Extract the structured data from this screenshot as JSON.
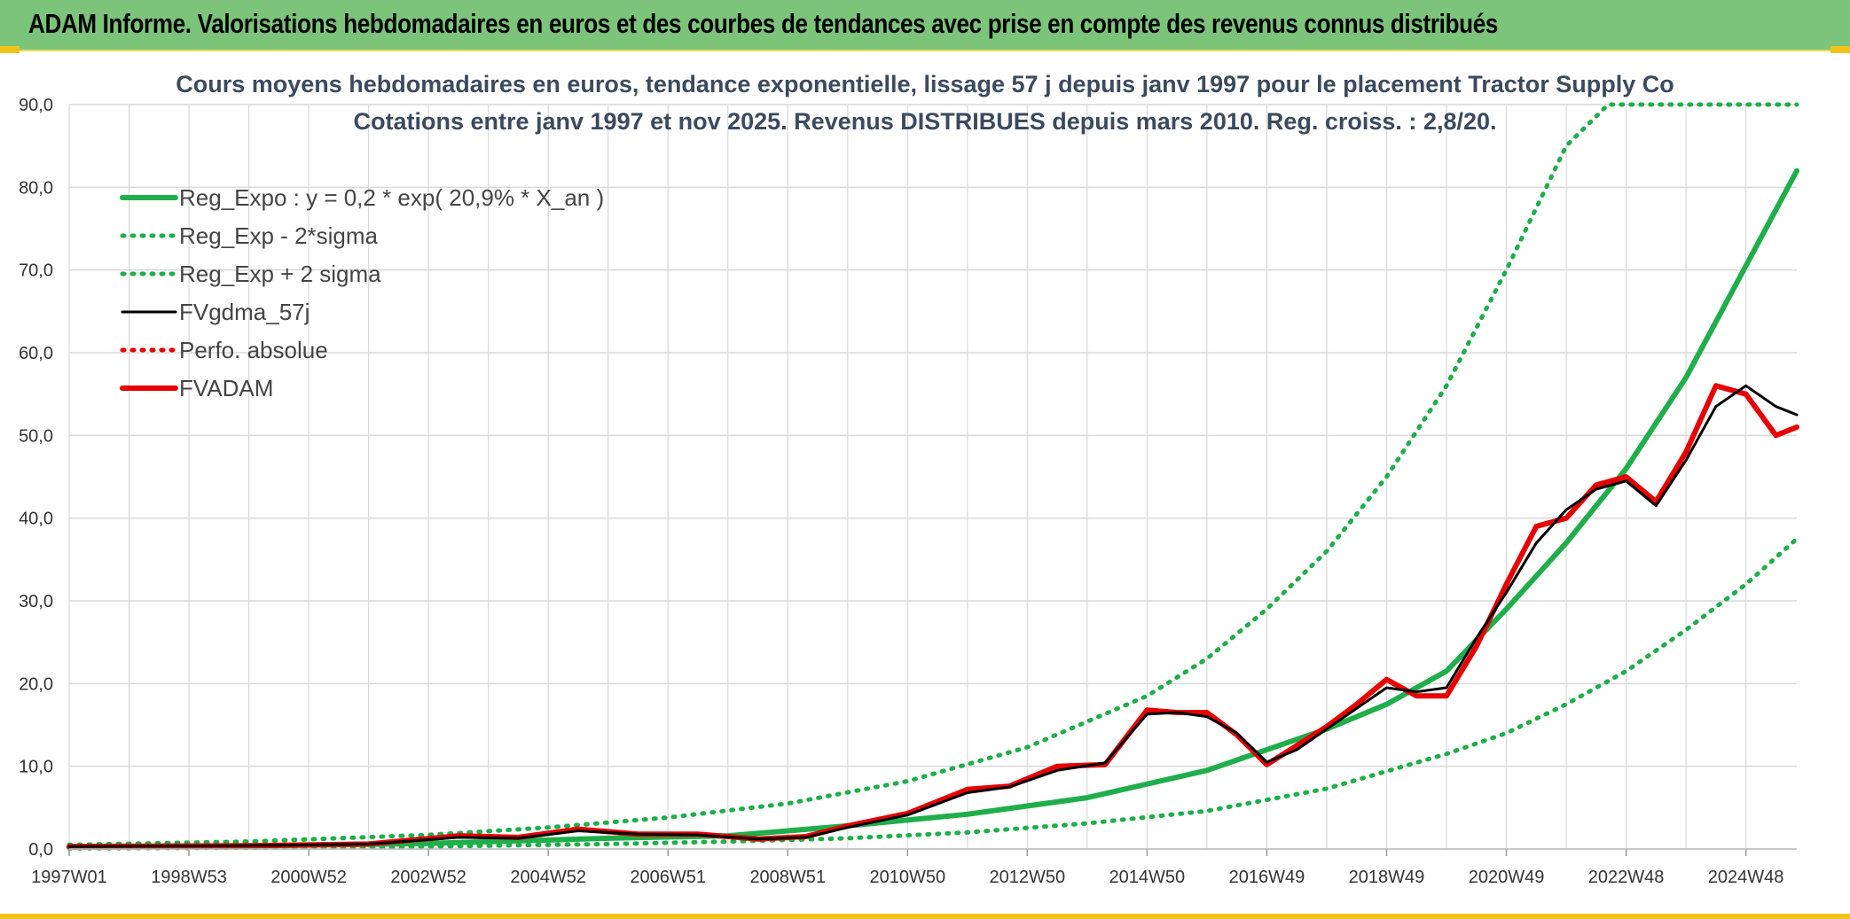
{
  "header": {
    "title": "ADAM Informe. Valorisations hebdomadaires en euros et des courbes de tendances avec prise en compte des revenus connus distribués"
  },
  "colors": {
    "banner": "#7cc47a",
    "reg_expo": "#1fae4a",
    "sigma": "#1fae4a",
    "fvgdma": "#000000",
    "perfo": "#e60000",
    "fvadam": "#e60000",
    "grid": "#d9d9d9"
  },
  "chart_data": {
    "type": "line",
    "title": "Cours moyens hebdomadaires en euros, tendance exponentielle, lissage 57 j depuis janv 1997 pour le placement Tractor Supply Co",
    "subtitle": "Cotations entre janv 1997 et nov 2025. Revenus DISTRIBUES depuis mars 2010. Reg. croiss. : 2,8/20.",
    "xlabel": "",
    "ylabel": "",
    "x_range": [
      1997.0,
      2025.85
    ],
    "ylim": [
      0,
      90
    ],
    "y_ticks": [
      "0,0",
      "10,0",
      "20,0",
      "30,0",
      "40,0",
      "50,0",
      "60,0",
      "70,0",
      "80,0",
      "90,0"
    ],
    "x_ticks": [
      {
        "label": "1997W01",
        "x": 1997.0
      },
      {
        "label": "1998W53",
        "x": 1999.0
      },
      {
        "label": "2000W52",
        "x": 2001.0
      },
      {
        "label": "2002W52",
        "x": 2003.0
      },
      {
        "label": "2004W52",
        "x": 2005.0
      },
      {
        "label": "2006W51",
        "x": 2007.0
      },
      {
        "label": "2008W51",
        "x": 2009.0
      },
      {
        "label": "2010W50",
        "x": 2011.0
      },
      {
        "label": "2012W50",
        "x": 2013.0
      },
      {
        "label": "2014W50",
        "x": 2015.0
      },
      {
        "label": "2016W49",
        "x": 2017.0
      },
      {
        "label": "2018W49",
        "x": 2019.0
      },
      {
        "label": "2020W49",
        "x": 2021.0
      },
      {
        "label": "2022W48",
        "x": 2023.0
      },
      {
        "label": "2024W48",
        "x": 2025.0
      }
    ],
    "grid": true,
    "legend_position": "top-left",
    "series": [
      {
        "name": "Reg_Expo : y = 0,2 * exp( 20,9% *  X_an )",
        "style": "solid-thick",
        "color": "#1fae4a",
        "x": [
          1997.0,
          2000.0,
          2003.0,
          2006.0,
          2008.0,
          2010.0,
          2012.0,
          2014.0,
          2016.0,
          2018.0,
          2019.0,
          2020.0,
          2021.0,
          2022.0,
          2023.0,
          2024.0,
          2025.0,
          2025.85
        ],
        "y": [
          0.2,
          0.38,
          0.68,
          1.3,
          1.6,
          2.8,
          4.2,
          6.2,
          9.5,
          14.5,
          17.5,
          21.5,
          29.0,
          37.0,
          46.0,
          57.0,
          70.5,
          82.0
        ]
      },
      {
        "name": "Reg_Exp - 2*sigma",
        "style": "dotted",
        "color": "#1fae4a",
        "x": [
          1997.0,
          2000.0,
          2003.0,
          2006.0,
          2008.0,
          2010.0,
          2012.0,
          2014.0,
          2016.0,
          2018.0,
          2020.0,
          2021.0,
          2022.0,
          2023.0,
          2024.0,
          2025.0,
          2025.85
        ],
        "y": [
          0.08,
          0.15,
          0.3,
          0.6,
          0.9,
          1.3,
          2.0,
          3.1,
          4.6,
          7.3,
          11.5,
          14.0,
          17.5,
          21.5,
          26.5,
          32.0,
          37.5
        ]
      },
      {
        "name": "Reg_Exp + 2 sigma",
        "style": "dotted",
        "color": "#1fae4a",
        "x": [
          1997.0,
          2000.0,
          2003.0,
          2005.0,
          2007.0,
          2009.0,
          2011.0,
          2013.0,
          2015.0,
          2016.0,
          2017.0,
          2018.0,
          2019.0,
          2020.0,
          2021.0,
          2022.0,
          2022.7,
          2025.85
        ],
        "y": [
          0.5,
          0.9,
          1.7,
          2.6,
          3.8,
          5.5,
          8.2,
          12.3,
          18.5,
          23.0,
          29.0,
          36.0,
          45.0,
          56.0,
          70.0,
          85.0,
          90.0,
          90.0
        ]
      },
      {
        "name": "FVgdma_57j",
        "style": "solid",
        "color": "#000000",
        "x": [
          1997.0,
          2000.0,
          2002.0,
          2003.5,
          2004.5,
          2005.5,
          2006.5,
          2007.5,
          2008.5,
          2009.3,
          2010.0,
          2011.0,
          2012.0,
          2012.7,
          2013.5,
          2014.3,
          2015.0,
          2015.5,
          2016.0,
          2016.5,
          2017.0,
          2017.5,
          2018.0,
          2018.5,
          2019.0,
          2019.5,
          2020.0,
          2020.5,
          2021.0,
          2021.5,
          2022.0,
          2022.5,
          2023.0,
          2023.5,
          2024.0,
          2024.5,
          2025.0,
          2025.5,
          2025.85
        ],
        "y": [
          0.3,
          0.4,
          0.6,
          1.4,
          1.3,
          2.2,
          1.8,
          1.7,
          1.2,
          1.4,
          2.6,
          4.1,
          6.8,
          7.5,
          9.5,
          10.4,
          16.3,
          16.5,
          16.0,
          14.0,
          10.5,
          12.0,
          14.5,
          17.0,
          19.5,
          19.0,
          19.5,
          25.5,
          31.0,
          37.0,
          41.0,
          43.5,
          44.5,
          41.5,
          47.0,
          53.5,
          56.0,
          53.5,
          52.5
        ]
      },
      {
        "name": "Perfo. absolue",
        "style": "dotted",
        "color": "#e60000",
        "x": [
          1997.0,
          2000.0,
          2002.0,
          2003.5,
          2004.5,
          2005.5,
          2006.5,
          2007.5,
          2008.5,
          2009.3,
          2010.0,
          2011.0,
          2012.0,
          2012.7,
          2013.5,
          2014.3,
          2015.0,
          2015.5,
          2016.0,
          2016.5,
          2017.0,
          2017.5,
          2018.0,
          2018.5,
          2019.0,
          2019.5,
          2020.0,
          2020.5,
          2021.0,
          2021.5,
          2022.0,
          2022.5,
          2023.0,
          2023.5,
          2024.0,
          2024.5,
          2025.0,
          2025.5,
          2025.85
        ],
        "y": [
          0.3,
          0.4,
          0.6,
          1.6,
          1.4,
          2.4,
          1.8,
          1.8,
          1.2,
          1.5,
          2.8,
          4.3,
          7.2,
          7.6,
          10.0,
          10.2,
          16.8,
          16.5,
          16.5,
          13.8,
          10.2,
          12.5,
          14.8,
          17.5,
          20.5,
          18.5,
          18.5,
          24.5,
          32.0,
          39.0,
          40.0,
          44.0,
          45.0,
          42.0,
          48.0,
          56.0,
          55.0,
          50.0,
          51.0
        ]
      },
      {
        "name": "FVADAM",
        "style": "solid-thick",
        "color": "#e60000",
        "x": [
          1997.0,
          2000.0,
          2002.0,
          2003.5,
          2004.5,
          2005.5,
          2006.5,
          2007.5,
          2008.5,
          2009.3,
          2010.0,
          2011.0,
          2012.0,
          2012.7,
          2013.5,
          2014.3,
          2015.0,
          2015.5,
          2016.0,
          2016.5,
          2017.0,
          2017.5,
          2018.0,
          2018.5,
          2019.0,
          2019.5,
          2020.0,
          2020.5,
          2021.0,
          2021.5,
          2022.0,
          2022.5,
          2023.0,
          2023.5,
          2024.0,
          2024.5,
          2025.0,
          2025.5,
          2025.85
        ],
        "y": [
          0.3,
          0.4,
          0.6,
          1.6,
          1.4,
          2.4,
          1.8,
          1.8,
          1.2,
          1.5,
          2.8,
          4.3,
          7.2,
          7.6,
          10.0,
          10.2,
          16.8,
          16.5,
          16.5,
          13.8,
          10.2,
          12.5,
          14.8,
          17.5,
          20.5,
          18.5,
          18.5,
          24.5,
          32.0,
          39.0,
          40.0,
          44.0,
          45.0,
          42.0,
          48.0,
          56.0,
          55.0,
          50.0,
          51.0
        ]
      }
    ]
  }
}
